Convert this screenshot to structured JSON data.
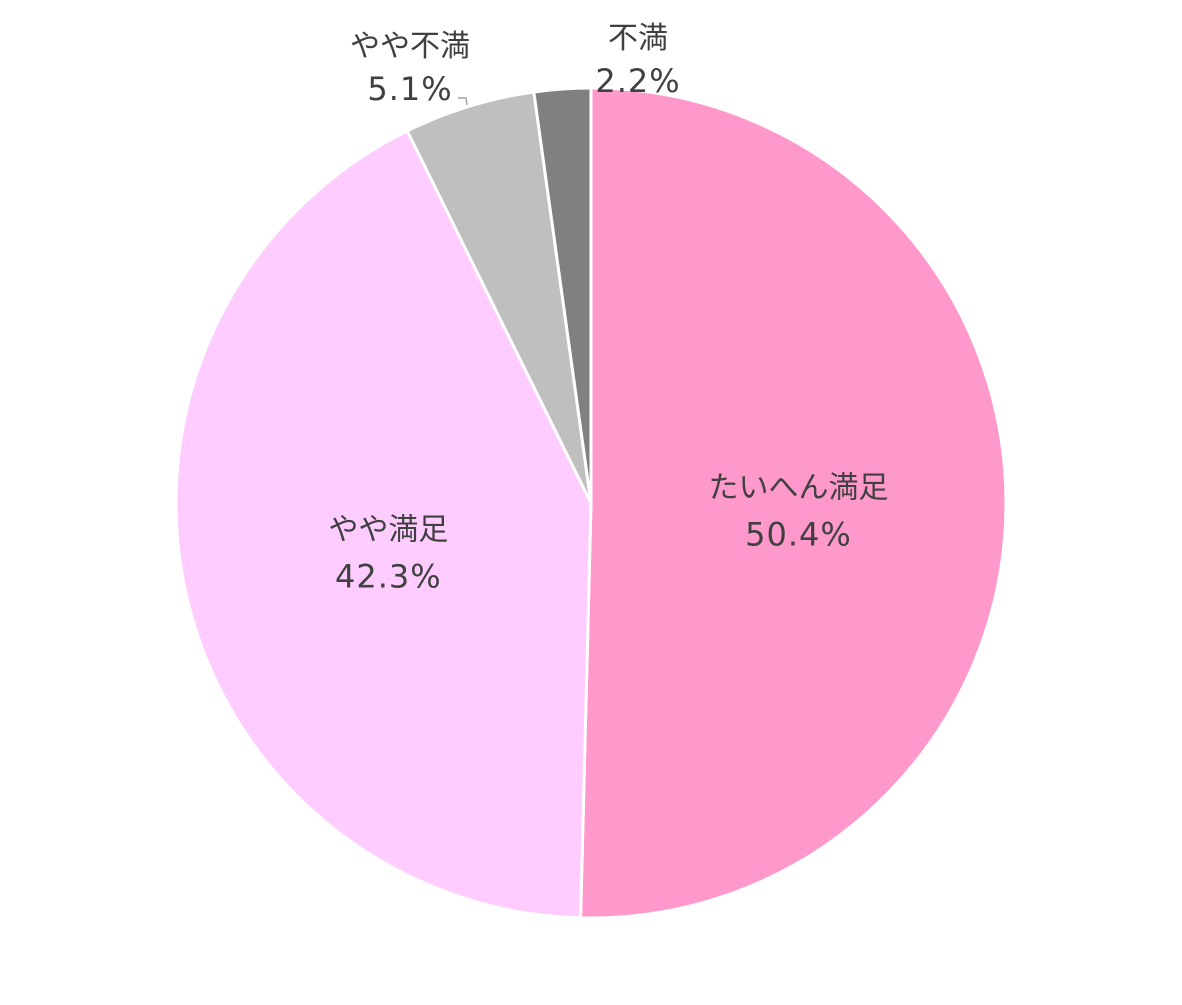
{
  "chart_data": {
    "type": "pie",
    "start_angle_deg": 0,
    "direction": "clockwise",
    "slices": [
      {
        "label": "たいへん満足",
        "value": 50.4,
        "display": "50.4%",
        "color": "#FF99CC"
      },
      {
        "label": "やや満足",
        "value": 42.3,
        "display": "42.3%",
        "color": "#FFCCFF"
      },
      {
        "label": "やや不満",
        "value": 5.1,
        "display": "5.1%",
        "color": "#BFBFBF"
      },
      {
        "label": "不満",
        "value": 2.2,
        "display": "2.2%",
        "color": "#808080"
      }
    ],
    "legend": "none"
  }
}
